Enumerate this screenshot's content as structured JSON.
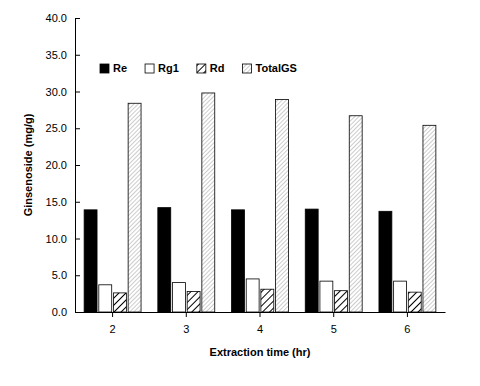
{
  "chart_data": {
    "type": "bar",
    "x_label": "Extraction time (hr)",
    "y_label": "Ginsenoside (mg/g)",
    "categories": [
      "2",
      "3",
      "4",
      "5",
      "6"
    ],
    "series": [
      {
        "name": "Re",
        "color": "#000000",
        "values": [
          13.9,
          14.2,
          13.9,
          14.0,
          13.7
        ]
      },
      {
        "name": "Rg1",
        "color": "#ffffff",
        "values": [
          3.7,
          4.0,
          4.5,
          4.2,
          4.2
        ]
      },
      {
        "name": "Rd",
        "color": "#000000",
        "values": [
          2.6,
          2.8,
          3.1,
          2.9,
          2.7
        ]
      },
      {
        "name": "TotalGS",
        "color": "#7f7f7f",
        "values": [
          28.4,
          29.8,
          28.9,
          26.7,
          25.4
        ]
      }
    ],
    "ylim": [
      0,
      40
    ],
    "yticks": [
      {
        "value": 0,
        "label": "0.0"
      },
      {
        "value": 5,
        "label": "5.0"
      },
      {
        "value": 10,
        "label": "10.0"
      },
      {
        "value": 15,
        "label": "15.0"
      },
      {
        "value": 20,
        "label": "20.0"
      },
      {
        "value": 25,
        "label": "25.0"
      },
      {
        "value": 30,
        "label": "30.0"
      },
      {
        "value": 35,
        "label": "35.0"
      },
      {
        "value": 40,
        "label": "40.0"
      }
    ],
    "legend": "top",
    "grid": false
  }
}
